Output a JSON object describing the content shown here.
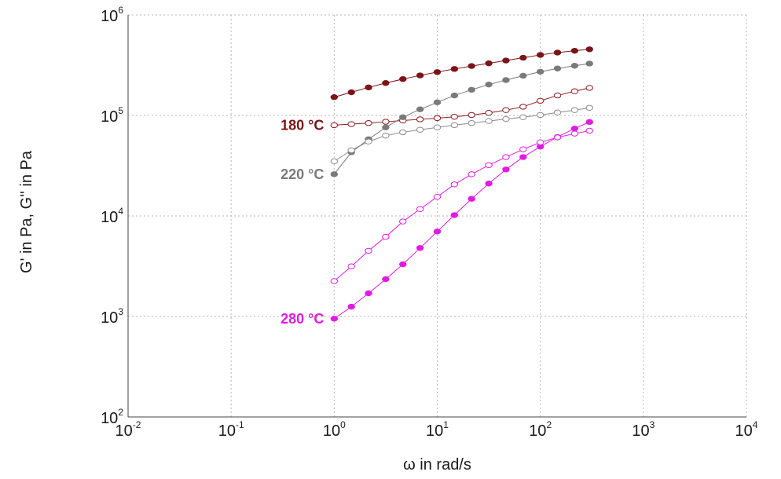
{
  "chart_data": {
    "type": "scatter",
    "xlabel": "ω in rad/s",
    "ylabel": "G' in Pa, G'' in Pa",
    "x_scale": "log",
    "y_scale": "log",
    "xlim": [
      0.01,
      10000
    ],
    "ylim": [
      100,
      1000000
    ],
    "grid": true,
    "x_ticks": [
      {
        "base": "10",
        "exp": "-2",
        "value": 0.01
      },
      {
        "base": "10",
        "exp": "-1",
        "value": 0.1
      },
      {
        "base": "10",
        "exp": "0",
        "value": 1
      },
      {
        "base": "10",
        "exp": "1",
        "value": 10
      },
      {
        "base": "10",
        "exp": "2",
        "value": 100
      },
      {
        "base": "10",
        "exp": "3",
        "value": 1000
      },
      {
        "base": "10",
        "exp": "4",
        "value": 10000
      }
    ],
    "y_ticks": [
      {
        "base": "10",
        "exp": "2",
        "value": 100
      },
      {
        "base": "10",
        "exp": "3",
        "value": 1000
      },
      {
        "base": "10",
        "exp": "4",
        "value": 10000
      },
      {
        "base": "10",
        "exp": "5",
        "value": 100000
      },
      {
        "base": "10",
        "exp": "6",
        "value": 1000000
      }
    ],
    "x": [
      1,
      1.468,
      2.154,
      3.162,
      4.642,
      6.813,
      10,
      14.68,
      21.54,
      31.62,
      46.42,
      68.13,
      100,
      146.8,
      215.4,
      300
    ],
    "series": [
      {
        "color": "#7b1416",
        "marker": "filled",
        "values": [
          152000,
          170000,
          190000,
          210000,
          230000,
          250000,
          270000,
          290000,
          310000,
          330000,
          352000,
          375000,
          400000,
          422000,
          440000,
          455000
        ]
      },
      {
        "color": "#8b1a1e",
        "marker": "open",
        "values": [
          80000,
          82000,
          84000,
          86500,
          89000,
          91500,
          94000,
          97000,
          101000,
          106000,
          113000,
          122000,
          140000,
          158000,
          174000,
          188000
        ]
      },
      {
        "color": "#7a7a7a",
        "marker": "filled",
        "values": [
          26000,
          43000,
          58000,
          76000,
          96000,
          115000,
          135000,
          158000,
          180000,
          203000,
          225000,
          248000,
          272000,
          293000,
          312000,
          328000
        ]
      },
      {
        "color": "#8a8a8a",
        "marker": "open",
        "values": [
          35000,
          45000,
          55000,
          63000,
          68000,
          72000,
          76000,
          80000,
          84000,
          88000,
          92000,
          96000,
          101000,
          107000,
          113000,
          119000
        ]
      },
      {
        "color": "#e21ae2",
        "marker": "filled",
        "values": [
          950,
          1250,
          1700,
          2350,
          3300,
          4800,
          7000,
          10200,
          14800,
          21000,
          29000,
          38500,
          49000,
          61000,
          74000,
          86000
        ]
      },
      {
        "color": "#e21ae2",
        "marker": "open",
        "values": [
          2250,
          3150,
          4500,
          6200,
          8800,
          11700,
          15500,
          20600,
          26000,
          32000,
          38500,
          46000,
          54000,
          60500,
          66000,
          70500
        ]
      }
    ],
    "annotations": [
      {
        "text": "180 °C",
        "color": "#7b1416",
        "x": 1,
        "y": 80000
      },
      {
        "text": "220 °C",
        "color": "#7a7a7a",
        "x": 1,
        "y": 26000
      },
      {
        "text": "280 °C",
        "color": "#e21ae2",
        "x": 1,
        "y": 950
      }
    ]
  }
}
